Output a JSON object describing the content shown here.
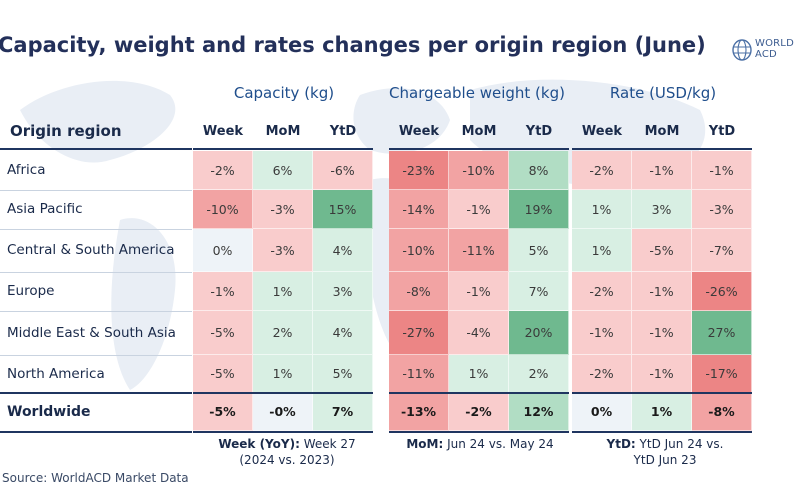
{
  "title": "Capacity, weight and rates changes per origin region (June)",
  "logo": {
    "line1": "WORLD",
    "line2": "ACD"
  },
  "chart_data": {
    "type": "table",
    "title": "Capacity, weight and rates changes per origin region (June)",
    "row_header": "Origin region",
    "groups": [
      {
        "name": "Capacity (kg)",
        "columns": [
          "Week",
          "MoM",
          "YtD"
        ]
      },
      {
        "name": "Chargeable weight (kg)",
        "columns": [
          "Week",
          "MoM",
          "YtD"
        ]
      },
      {
        "name": "Rate (USD/kg)",
        "columns": [
          "Week",
          "MoM",
          "YtD"
        ]
      }
    ],
    "rows": [
      {
        "region": "Africa",
        "values": [
          -2,
          6,
          -6,
          -23,
          -10,
          8,
          -2,
          -1,
          -1
        ],
        "labels": [
          "-2%",
          "6%",
          "-6%",
          "-23%",
          "-10%",
          "8%",
          "-2%",
          "-1%",
          "-1%"
        ]
      },
      {
        "region": "Asia Pacific",
        "values": [
          -10,
          -3,
          15,
          -14,
          -1,
          19,
          1,
          3,
          -3
        ],
        "labels": [
          "-10%",
          "-3%",
          "15%",
          "-14%",
          "-1%",
          "19%",
          "1%",
          "3%",
          "-3%"
        ]
      },
      {
        "region": "Central & South America",
        "values": [
          0,
          -3,
          4,
          -10,
          -11,
          5,
          1,
          -5,
          -7
        ],
        "labels": [
          "0%",
          "-3%",
          "4%",
          "-10%",
          "-11%",
          "5%",
          "1%",
          "-5%",
          "-7%"
        ]
      },
      {
        "region": "Europe",
        "values": [
          -1,
          1,
          3,
          -8,
          -1,
          7,
          -2,
          -1,
          -26
        ],
        "labels": [
          "-1%",
          "1%",
          "3%",
          "-8%",
          "-1%",
          "7%",
          "-2%",
          "-1%",
          "-26%"
        ]
      },
      {
        "region": "Middle East & South Asia",
        "values": [
          -5,
          2,
          4,
          -27,
          -4,
          20,
          -1,
          -1,
          27
        ],
        "labels": [
          "-5%",
          "2%",
          "4%",
          "-27%",
          "-4%",
          "20%",
          "-1%",
          "-1%",
          "27%"
        ]
      },
      {
        "region": "North America",
        "values": [
          -5,
          1,
          5,
          -11,
          1,
          2,
          -2,
          -1,
          -17
        ],
        "labels": [
          "-5%",
          "1%",
          "5%",
          "-11%",
          "1%",
          "2%",
          "-2%",
          "-1%",
          "-17%"
        ]
      },
      {
        "region": "Worldwide",
        "values": [
          -5,
          0,
          7,
          -13,
          -2,
          12,
          0,
          1,
          -8
        ],
        "labels": [
          "-5%",
          "-0%",
          "7%",
          "-13%",
          "-2%",
          "12%",
          "0%",
          "1%",
          "-8%"
        ],
        "bold": true
      }
    ]
  },
  "footnotes": [
    {
      "label": "Week (YoY):",
      "text": "Week 27",
      "text2": "(2024 vs. 2023)"
    },
    {
      "label": "MoM:",
      "text": "Jun 24 vs. May 24",
      "text2": ""
    },
    {
      "label": "YtD:",
      "text": "YtD Jun 24 vs.",
      "text2": "YtD Jun 23"
    }
  ],
  "source": "Source: WorldACD Market Data",
  "colors": {
    "neg_light": "#f9cccc",
    "neg_mid": "#f2a3a3",
    "neg_dark": "#ec8585",
    "pos_light": "#d8efe3",
    "pos_mid": "#b1ddc4",
    "pos_dark": "#6fb98f",
    "neutral": "#eef3f8",
    "header_blue": "#1f4e8c"
  }
}
